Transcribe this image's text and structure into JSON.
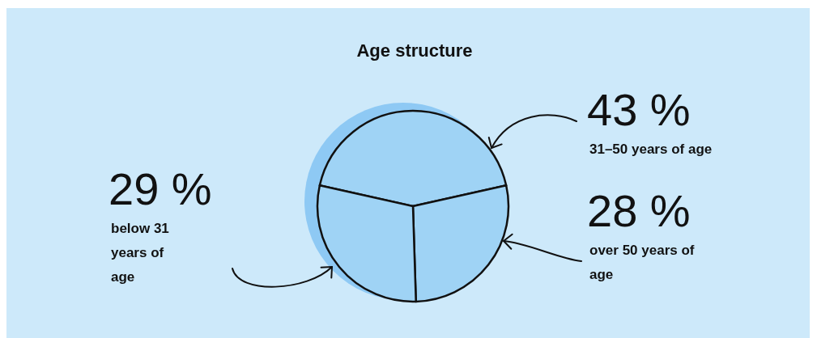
{
  "chart_data": {
    "type": "pie",
    "title": "Age structure",
    "categories": [
      "31–50 years of age",
      "over 50 years of age",
      "below 31 years of age"
    ],
    "values": [
      43,
      28,
      29
    ],
    "value_labels": [
      "43 %",
      "28 %",
      "29 %"
    ],
    "colors": [
      "#9fd3f5",
      "#9fd3f5",
      "#9fd3f5"
    ]
  }
}
